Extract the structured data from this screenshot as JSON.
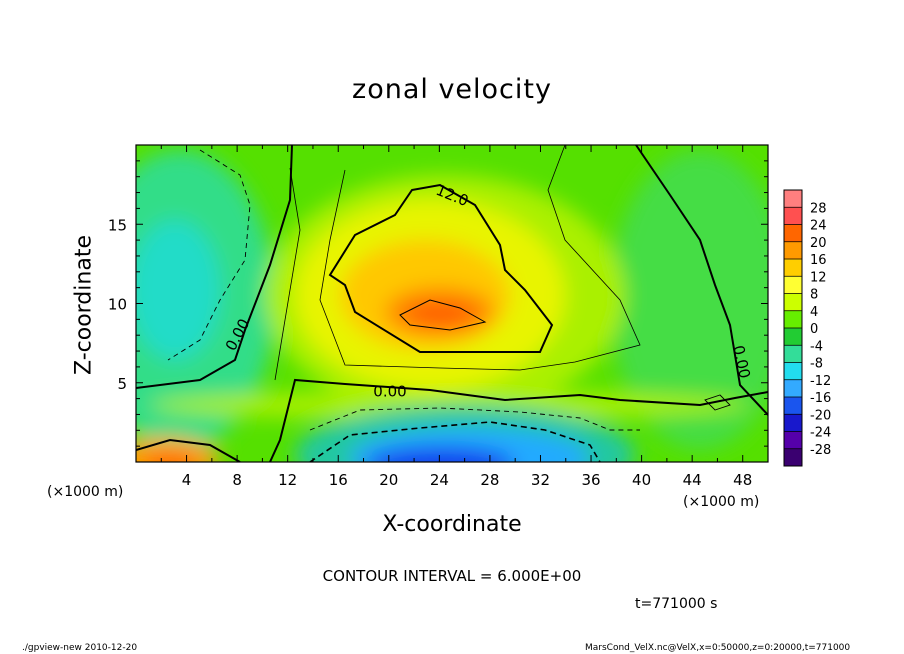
{
  "chart_data": {
    "type": "heatmap",
    "title": "zonal velocity",
    "xlabel": "X-coordinate",
    "ylabel": "Z-coordinate",
    "x_unit": "(×1000 m)",
    "xlim": [
      0,
      50
    ],
    "ylim": [
      0,
      20
    ],
    "x_ticks": [
      4,
      8,
      12,
      16,
      20,
      24,
      28,
      32,
      36,
      40,
      44,
      48
    ],
    "y_ticks": [
      5,
      10,
      15
    ],
    "colorbar": {
      "levels": [
        28,
        24,
        20,
        16,
        12,
        8,
        4,
        0,
        -4,
        -8,
        -12,
        -16,
        -20,
        -24,
        -28
      ],
      "colors": [
        "#ff7f7f",
        "#ff5050",
        "#ff6600",
        "#ff9a00",
        "#ffce00",
        "#ffff33",
        "#ccff00",
        "#66ee00",
        "#22cc33",
        "#33dd99",
        "#22ddee",
        "#33aaff",
        "#1a55ee",
        "#1818cc",
        "#5500aa",
        "#3a0070"
      ]
    },
    "contour_labels": [
      "12.0",
      "0.00",
      "0.00",
      "0.00"
    ],
    "contour_interval": "CONTOUR INTERVAL = 6.000E+00",
    "time": "t=771000 s",
    "footer_left": "./gpview-new 2010-12-20",
    "footer_right": "MarsCond_VelX.nc@VelX,x=0:50000,z=0:20000,t=771000"
  }
}
